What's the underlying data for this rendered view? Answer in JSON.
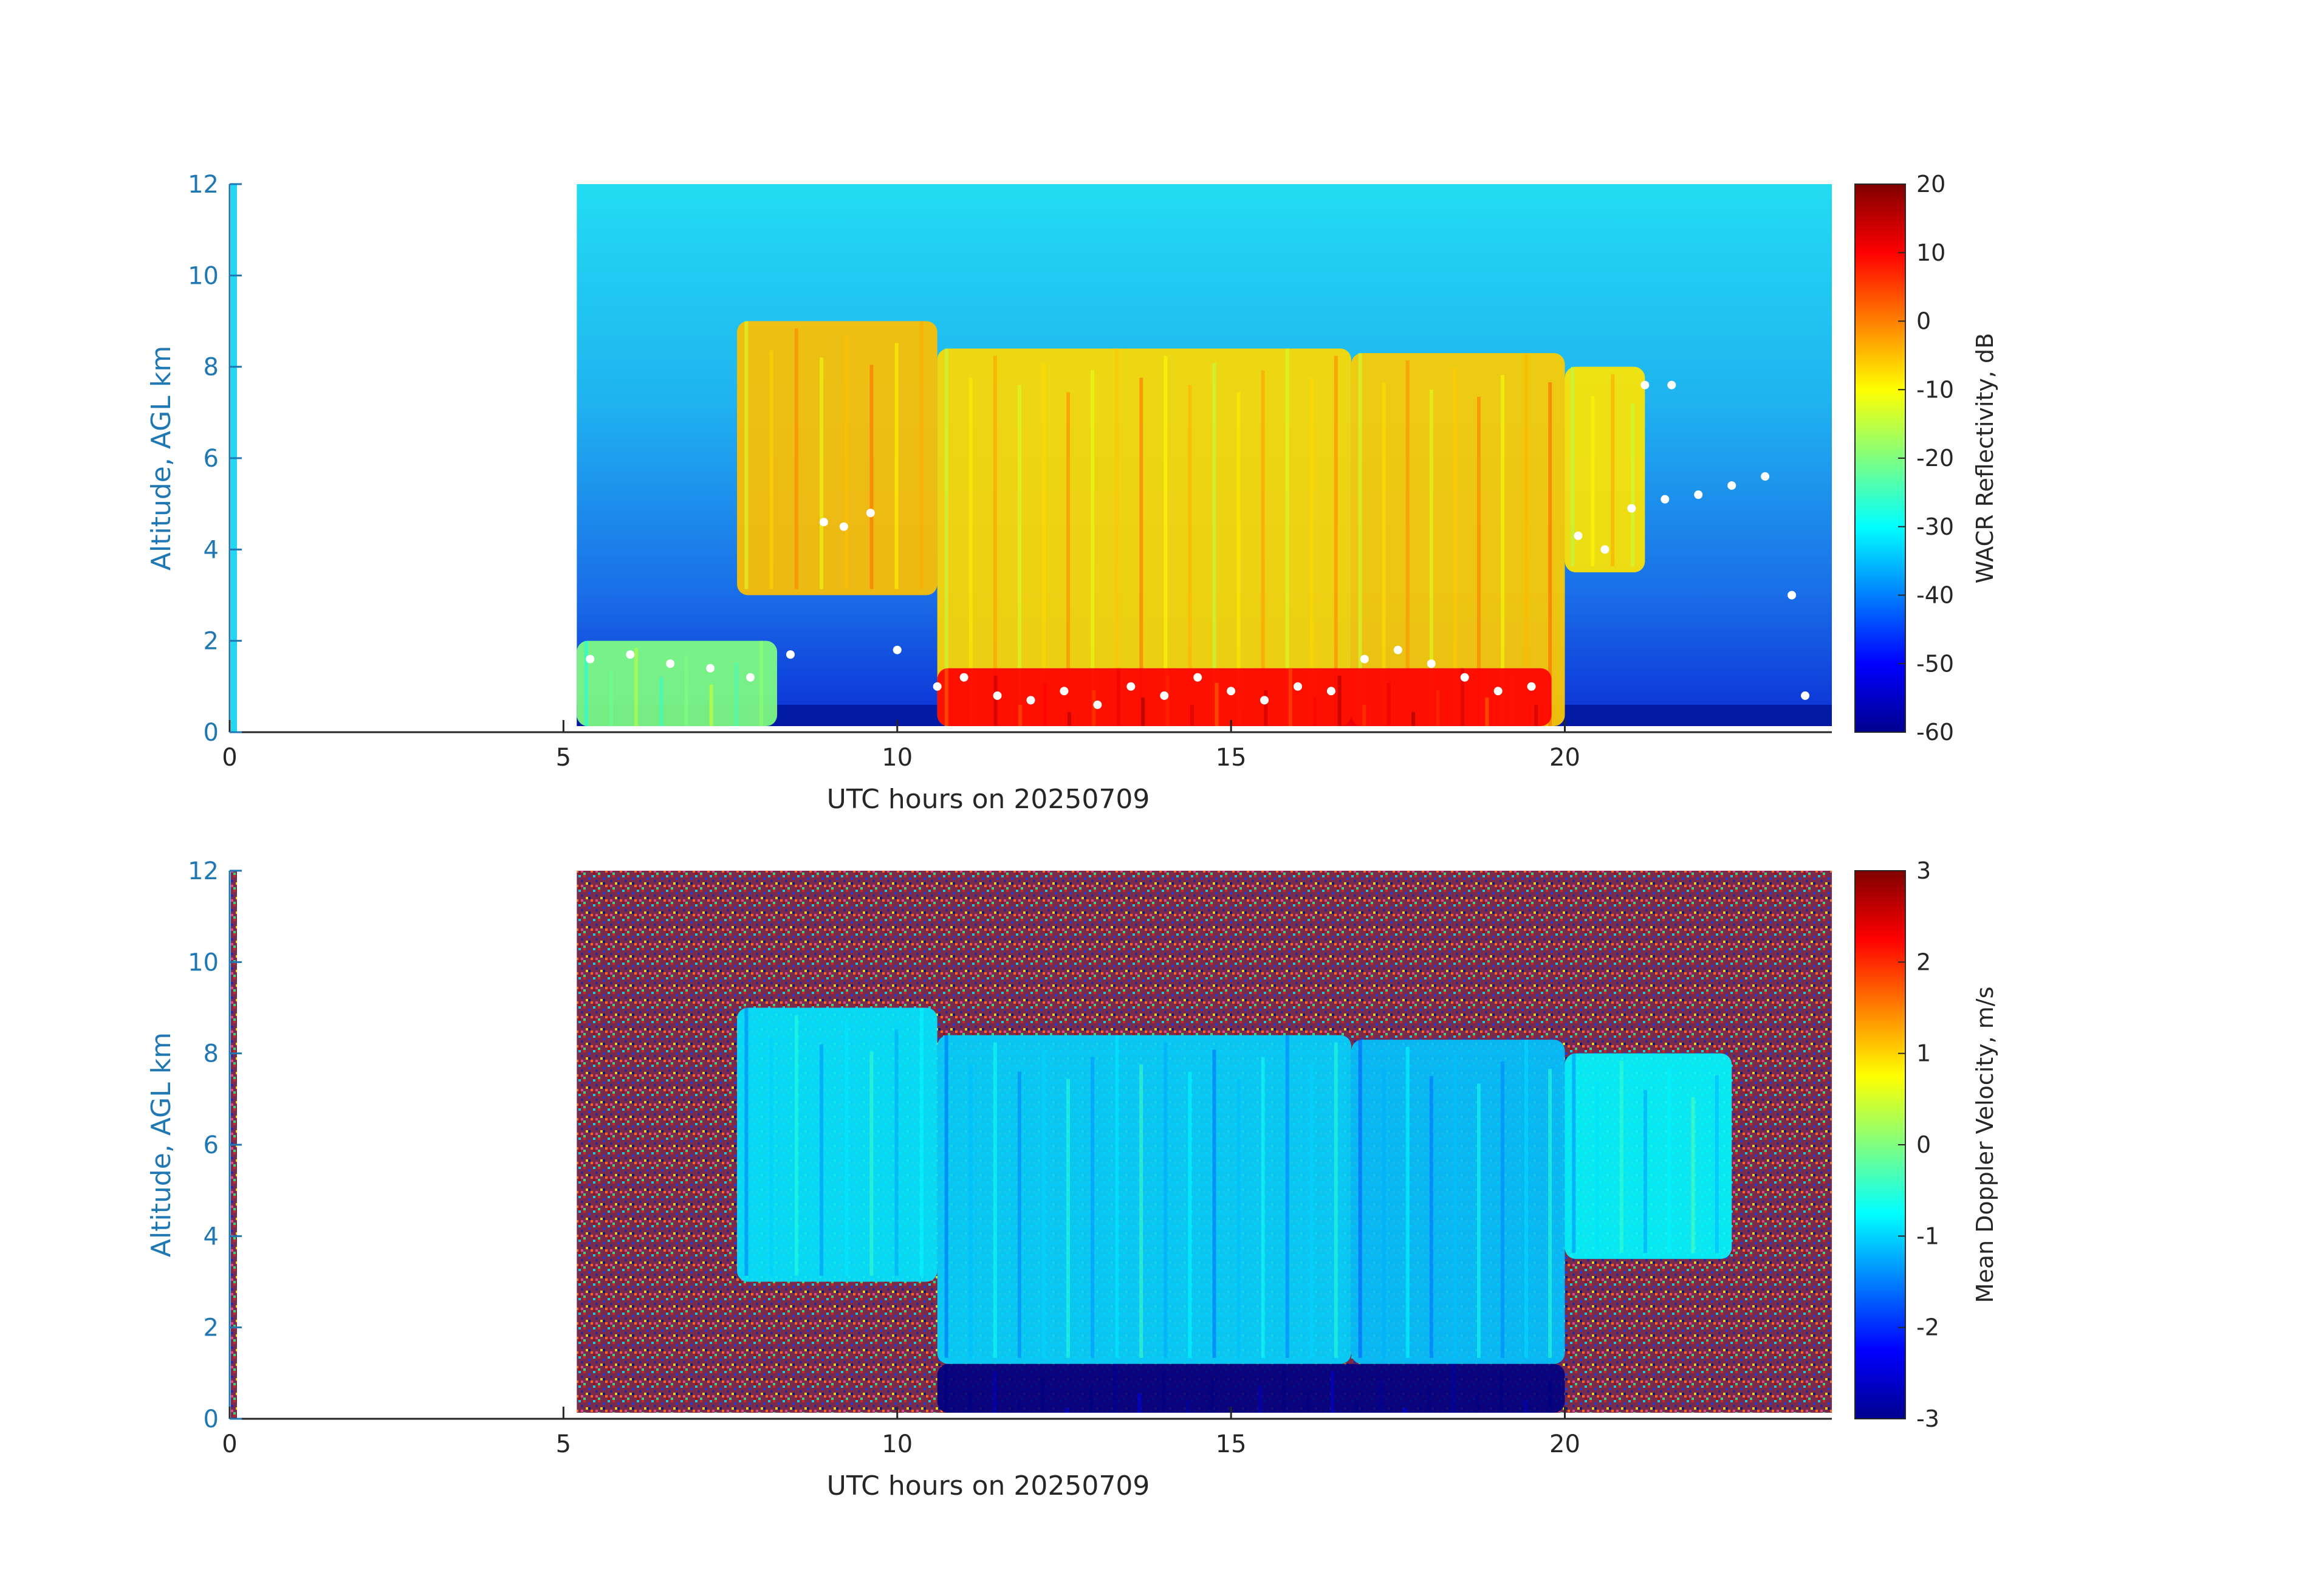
{
  "colors": {
    "axis_blue": "#1f77b4",
    "axis_black": "#262626",
    "dots": "#ffffff"
  },
  "colormap_name": "jet",
  "chart_data": [
    {
      "type": "heatmap",
      "title": "",
      "xlabel": "UTC hours on 20250709",
      "ylabel": "Altitude, AGL km",
      "xlim": [
        0,
        24
      ],
      "ylim": [
        0,
        12
      ],
      "xticks": [
        "0",
        "5",
        "10",
        "15",
        "20"
      ],
      "yticks": [
        "0",
        "2",
        "4",
        "6",
        "8",
        "10",
        "12"
      ],
      "data_start_hour": 5.2,
      "colorbar": {
        "label": "WACR Reflectivity, dB",
        "range": [
          -60,
          20
        ],
        "ticks": [
          "20",
          "10",
          "0",
          "-10",
          "-20",
          "-30",
          "-40",
          "-50",
          "-60"
        ]
      },
      "cloud_regions": [
        {
          "x0": 7.6,
          "x1": 10.6,
          "bottom_km": 3.0,
          "top_km": 9.0,
          "dBZ": -5
        },
        {
          "x0": 10.6,
          "x1": 16.8,
          "bottom_km": 0.0,
          "top_km": 8.4,
          "dBZ": -7
        },
        {
          "x0": 16.8,
          "x1": 20.0,
          "bottom_km": 0.0,
          "top_km": 8.3,
          "dBZ": -6
        },
        {
          "x0": 20.0,
          "x1": 21.2,
          "bottom_km": 3.5,
          "top_km": 8.0,
          "dBZ": -8
        },
        {
          "x0": 10.6,
          "x1": 19.8,
          "bottom_km": 0.0,
          "top_km": 1.4,
          "dBZ": 10
        },
        {
          "x0": 5.2,
          "x1": 8.2,
          "bottom_km": 0.0,
          "top_km": 2.0,
          "dBZ": -20
        }
      ],
      "cloud_base_points": [
        [
          5.4,
          1.6
        ],
        [
          6.0,
          1.7
        ],
        [
          6.6,
          1.5
        ],
        [
          7.2,
          1.4
        ],
        [
          7.8,
          1.2
        ],
        [
          8.4,
          1.7
        ],
        [
          8.9,
          4.6
        ],
        [
          9.2,
          4.5
        ],
        [
          9.6,
          4.8
        ],
        [
          10.0,
          1.8
        ],
        [
          10.6,
          1.0
        ],
        [
          11.0,
          1.2
        ],
        [
          11.5,
          0.8
        ],
        [
          12.0,
          0.7
        ],
        [
          12.5,
          0.9
        ],
        [
          13.0,
          0.6
        ],
        [
          13.5,
          1.0
        ],
        [
          14.0,
          0.8
        ],
        [
          14.5,
          1.2
        ],
        [
          15.0,
          0.9
        ],
        [
          15.5,
          0.7
        ],
        [
          16.0,
          1.0
        ],
        [
          16.5,
          0.9
        ],
        [
          17.0,
          1.6
        ],
        [
          17.5,
          1.8
        ],
        [
          18.0,
          1.5
        ],
        [
          18.5,
          1.2
        ],
        [
          19.0,
          0.9
        ],
        [
          19.5,
          1.0
        ],
        [
          20.2,
          4.3
        ],
        [
          20.6,
          4.0
        ],
        [
          21.0,
          4.9
        ],
        [
          21.5,
          5.1
        ],
        [
          22.0,
          5.2
        ],
        [
          22.5,
          5.4
        ],
        [
          23.0,
          5.6
        ],
        [
          21.2,
          7.6
        ],
        [
          21.6,
          7.6
        ],
        [
          23.4,
          3.0
        ],
        [
          23.6,
          0.8
        ]
      ]
    },
    {
      "type": "heatmap",
      "title": "",
      "xlabel": "UTC hours on 20250709",
      "ylabel": "Altitude, AGL km",
      "xlim": [
        0,
        24
      ],
      "ylim": [
        0,
        12
      ],
      "xticks": [
        "0",
        "5",
        "10",
        "15",
        "20"
      ],
      "yticks": [
        "0",
        "2",
        "4",
        "6",
        "8",
        "10",
        "12"
      ],
      "data_start_hour": 5.2,
      "colorbar": {
        "label": "Mean Doppler Velocity, m/s",
        "range": [
          -3,
          3
        ],
        "ticks": [
          "3",
          "2",
          "1",
          "0",
          "-1",
          "-2",
          "-3"
        ]
      },
      "cloud_regions": [
        {
          "x0": 7.6,
          "x1": 10.6,
          "bottom_km": 3.0,
          "top_km": 9.0,
          "velocity": -0.9
        },
        {
          "x0": 10.6,
          "x1": 16.8,
          "bottom_km": 1.2,
          "top_km": 8.4,
          "velocity": -1.0
        },
        {
          "x0": 16.8,
          "x1": 20.0,
          "bottom_km": 1.2,
          "top_km": 8.3,
          "velocity": -1.1
        },
        {
          "x0": 20.0,
          "x1": 22.5,
          "bottom_km": 3.5,
          "top_km": 8.0,
          "velocity": -0.8
        },
        {
          "x0": 10.6,
          "x1": 20.0,
          "bottom_km": 0.0,
          "top_km": 1.2,
          "velocity": -3.0
        }
      ]
    }
  ]
}
